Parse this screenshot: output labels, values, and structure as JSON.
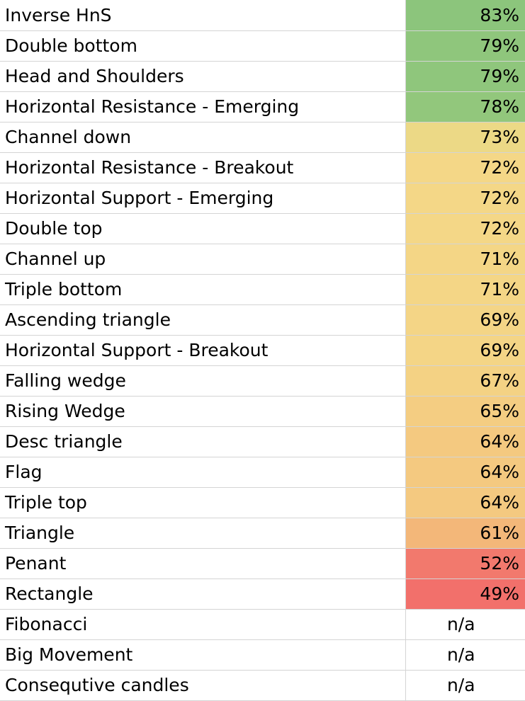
{
  "table": {
    "rows": [
      {
        "name": "Inverse HnS",
        "value": "83%",
        "color": "#8cc57c"
      },
      {
        "name": "Double bottom",
        "value": "79%",
        "color": "#8fc67c"
      },
      {
        "name": "Head and Shoulders",
        "value": "79%",
        "color": "#8fc67c"
      },
      {
        "name": "Horizontal Resistance - Emerging",
        "value": "78%",
        "color": "#92c77c"
      },
      {
        "name": "Channel down",
        "value": "73%",
        "color": "#ecd986"
      },
      {
        "name": "Horizontal Resistance - Breakout",
        "value": "72%",
        "color": "#f4d787"
      },
      {
        "name": "Horizontal Support - Emerging",
        "value": "72%",
        "color": "#f4d787"
      },
      {
        "name": "Double top",
        "value": "72%",
        "color": "#f4d787"
      },
      {
        "name": "Channel up",
        "value": "71%",
        "color": "#f4d686"
      },
      {
        "name": "Triple bottom",
        "value": "71%",
        "color": "#f4d686"
      },
      {
        "name": "Ascending triangle",
        "value": "69%",
        "color": "#f4d586"
      },
      {
        "name": "Horizontal Support - Breakout",
        "value": "69%",
        "color": "#f4d586"
      },
      {
        "name": "Falling wedge",
        "value": "67%",
        "color": "#f4d284"
      },
      {
        "name": "Rising Wedge",
        "value": "65%",
        "color": "#f4cd82"
      },
      {
        "name": "Desc triangle",
        "value": "64%",
        "color": "#f4c980"
      },
      {
        "name": "Flag",
        "value": "64%",
        "color": "#f4c980"
      },
      {
        "name": "Triple top",
        "value": "64%",
        "color": "#f4c980"
      },
      {
        "name": "Triangle",
        "value": "61%",
        "color": "#f3b779"
      },
      {
        "name": "Penant",
        "value": "52%",
        "color": "#f2796d"
      },
      {
        "name": "Rectangle",
        "value": "49%",
        "color": "#f2706b"
      },
      {
        "name": "Fibonacci",
        "value": "n/a",
        "color": "#ffffff"
      },
      {
        "name": "Big Movement",
        "value": "n/a",
        "color": "#ffffff"
      },
      {
        "name": "Consequtive candles",
        "value": "n/a",
        "color": "#ffffff"
      }
    ]
  }
}
